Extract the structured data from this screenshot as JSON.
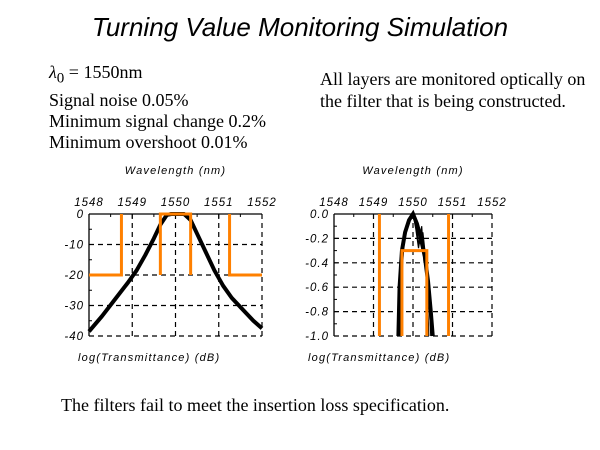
{
  "title": "Turning Value Monitoring Simulation",
  "parameters": {
    "lambda_symbol": "λ",
    "lambda_subscript": "0",
    "lambda_value": " = 1550nm",
    "lines": [
      "Signal noise 0.05%",
      "Minimum signal change 0.2%",
      "Minimum overshoot 0.01%"
    ]
  },
  "note": "All layers are monitored optically on the filter that is being constructed.",
  "footer": "The filters fail to meet the insertion loss specification.",
  "colors": {
    "curve": "#000000",
    "spec": "#ff8000",
    "grid": "#000000"
  },
  "chart_data": [
    {
      "type": "line",
      "xlabel": "Wavelength (nm)",
      "ylabel": "log(Transmittance) (dB)",
      "xlim": [
        1548,
        1552
      ],
      "ylim": [
        -40,
        0
      ],
      "xticks": [
        1548,
        1549,
        1550,
        1551,
        1552
      ],
      "xtick_labels": [
        "1548",
        "1549",
        "1550",
        "1551",
        "1552"
      ],
      "yticks": [
        0,
        -10,
        -20,
        -30,
        -40
      ],
      "ytick_labels": [
        "0",
        "-10",
        "-20",
        "-30",
        "-40"
      ],
      "grid": true,
      "series": [
        {
          "name": "simulated filter transmittance",
          "color": "#000000",
          "x": [
            1548.0,
            1548.3,
            1548.6,
            1548.9,
            1549.1,
            1549.3,
            1549.5,
            1549.65,
            1549.8,
            1549.9,
            1550.0,
            1550.1,
            1550.2,
            1550.35,
            1550.5,
            1550.7,
            1550.9,
            1551.1,
            1551.3,
            1551.6,
            1551.8,
            1552.0
          ],
          "y": [
            -38.5,
            -33.5,
            -28,
            -22.5,
            -18.5,
            -13.5,
            -8,
            -3.5,
            -0.3,
            0,
            0,
            0,
            0,
            -2,
            -6.5,
            -12.5,
            -18.5,
            -23.5,
            -27.5,
            -32,
            -35,
            -37.5
          ]
        },
        {
          "name": "specification mask",
          "color": "#ff8000",
          "segments": [
            {
              "x": [
                1548.0,
                1548.75,
                1548.75
              ],
              "y": [
                -20,
                -20,
                0
              ]
            },
            {
              "x": [
                1549.65,
                1549.65,
                1550.35,
                1550.35
              ],
              "y": [
                -20,
                0,
                0,
                -20
              ]
            },
            {
              "x": [
                1551.25,
                1551.25,
                1552.0
              ],
              "y": [
                0,
                -20,
                -20
              ]
            }
          ]
        }
      ]
    },
    {
      "type": "line",
      "xlabel": "Wavelength (nm)",
      "ylabel": "log(Transmittance) (dB)",
      "xlim": [
        1548,
        1552
      ],
      "ylim": [
        -1.0,
        0.0
      ],
      "xticks": [
        1548,
        1549,
        1550,
        1551,
        1552
      ],
      "xtick_labels": [
        "1548",
        "1549",
        "1550",
        "1551",
        "1552"
      ],
      "yticks": [
        0.0,
        -0.2,
        -0.4,
        -0.6,
        -0.8,
        -1.0
      ],
      "ytick_labels": [
        "0.0",
        "-0.2",
        "-0.4",
        "-0.6",
        "-0.8",
        "-1.0"
      ],
      "grid": true,
      "series": [
        {
          "name": "simulated filter transmittance (multiple runs)",
          "color": "#000000",
          "runs": [
            {
              "x": [
                1549.63,
                1549.66,
                1549.72,
                1549.8,
                1549.9,
                1550.0,
                1550.1,
                1550.2,
                1550.3,
                1550.38,
                1550.45,
                1550.5
              ],
              "y": [
                -1.0,
                -0.6,
                -0.3,
                -0.15,
                -0.05,
                0.0,
                -0.08,
                -0.2,
                -0.35,
                -0.55,
                -0.8,
                -1.0
              ]
            },
            {
              "x": [
                1549.65,
                1549.7,
                1549.75,
                1549.82,
                1549.9,
                1550.0,
                1550.08,
                1550.15,
                1550.25,
                1550.3,
                1550.38,
                1550.45
              ],
              "y": [
                -1.0,
                -0.45,
                -0.22,
                -0.1,
                -0.04,
                0.0,
                -0.1,
                -0.25,
                -0.15,
                -0.3,
                -0.5,
                -1.0
              ]
            },
            {
              "x": [
                1549.68,
                1549.72,
                1549.78,
                1549.86,
                1549.95,
                1550.0,
                1550.07,
                1550.14,
                1550.22,
                1550.28,
                1550.33,
                1550.4
              ],
              "y": [
                -1.0,
                -0.5,
                -0.2,
                -0.08,
                -0.02,
                0.0,
                -0.12,
                -0.28,
                -0.1,
                -0.4,
                -0.3,
                -1.0
              ]
            }
          ]
        },
        {
          "name": "specification mask",
          "color": "#ff8000",
          "segments": [
            {
              "x": [
                1549.15,
                1549.15
              ],
              "y": [
                -1.0,
                0.0
              ]
            },
            {
              "x": [
                1549.72,
                1549.72,
                1550.35,
                1550.35
              ],
              "y": [
                -1.0,
                -0.3,
                -0.3,
                -1.0
              ]
            },
            {
              "x": [
                1550.9,
                1550.9
              ],
              "y": [
                -1.0,
                0.0
              ]
            }
          ]
        }
      ]
    }
  ]
}
